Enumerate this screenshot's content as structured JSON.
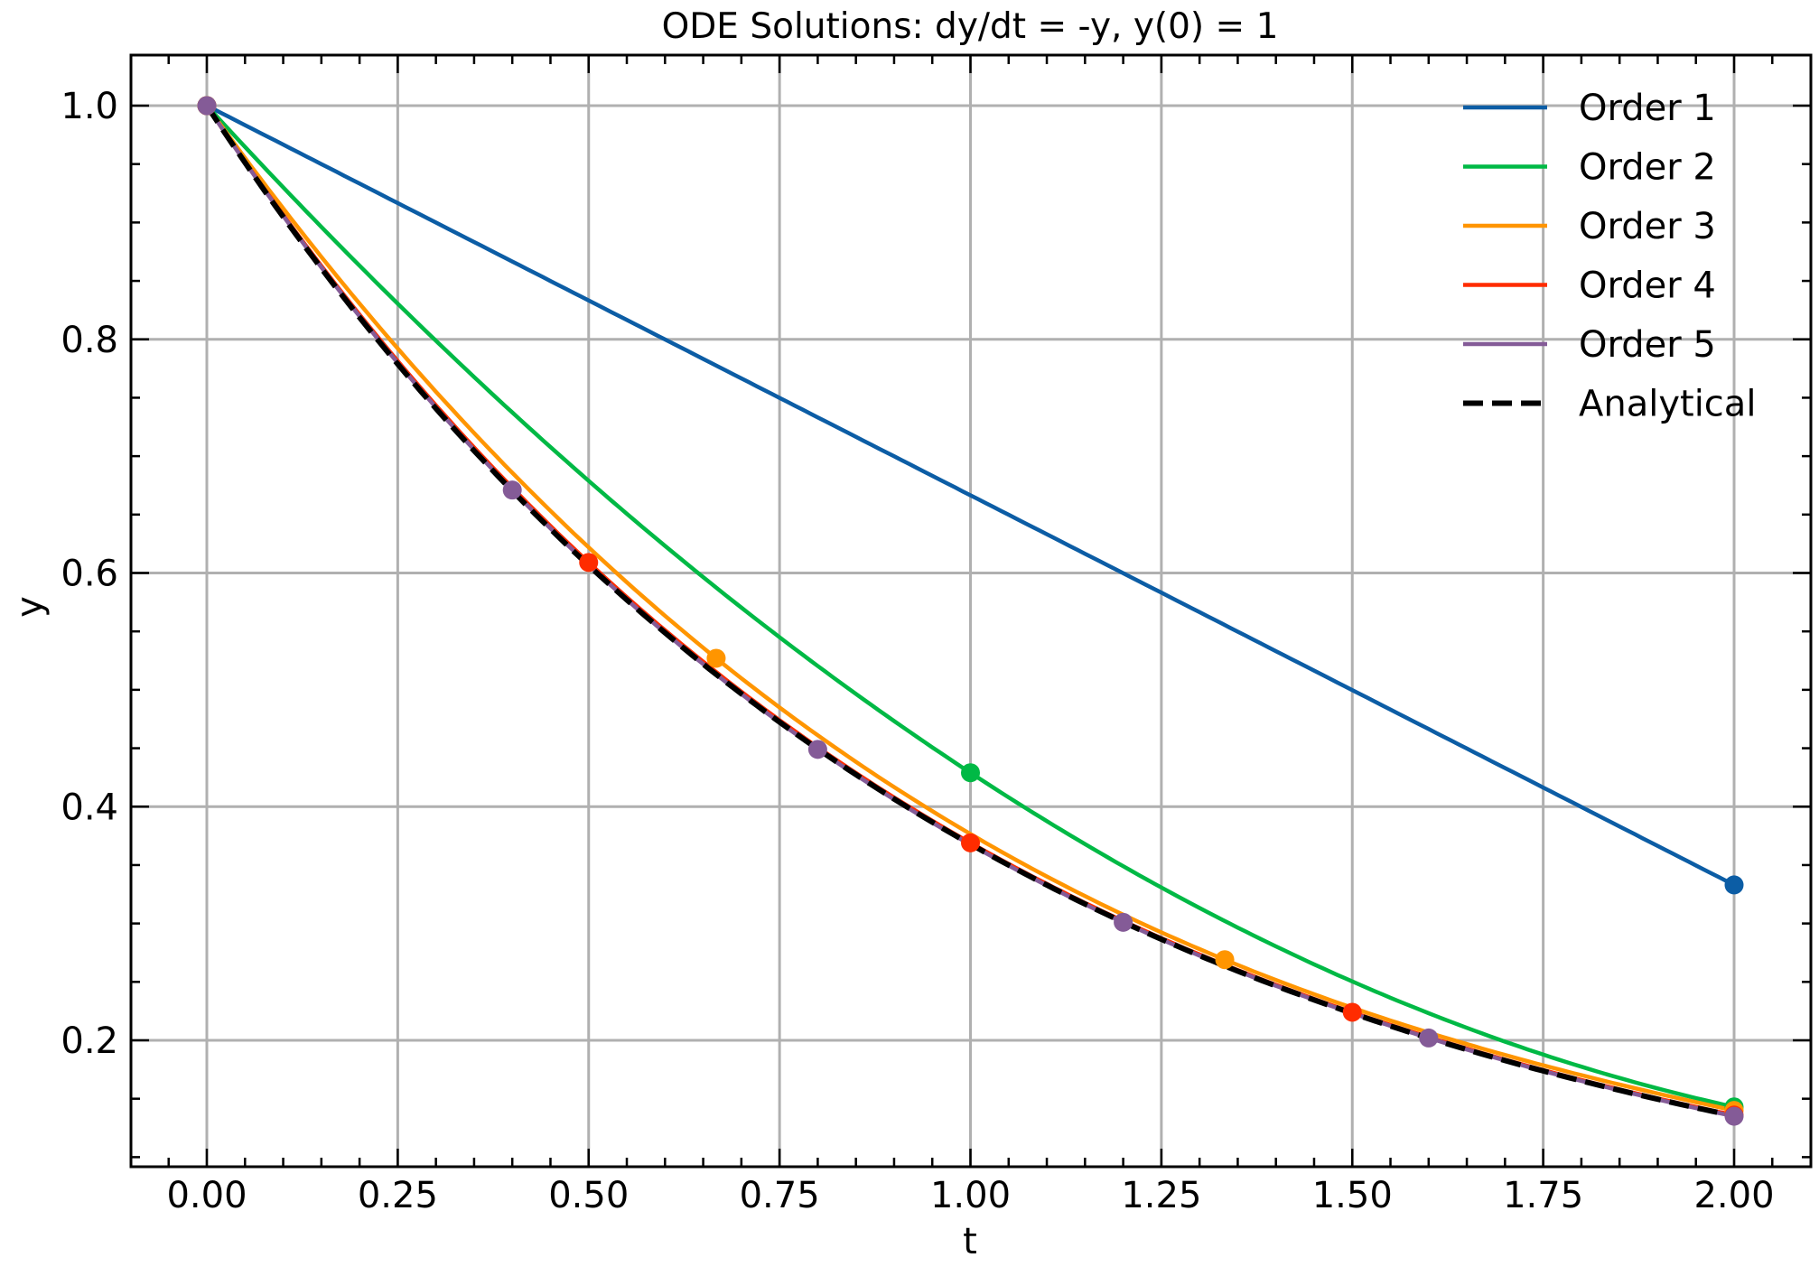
{
  "chart_data": {
    "type": "line",
    "title": "ODE Solutions: dy/dt = -y, y(0) = 1",
    "xlabel": "t",
    "ylabel": "y",
    "xlim": [
      -0.1,
      2.1
    ],
    "ylim": [
      0.09,
      1.044
    ],
    "grid": true,
    "legend_position": "upper right",
    "x_ticks": [
      0.0,
      0.25,
      0.5,
      0.75,
      1.0,
      1.25,
      1.5,
      1.75,
      2.0
    ],
    "x_tick_labels": [
      "0.00",
      "0.25",
      "0.50",
      "0.75",
      "1.00",
      "1.25",
      "1.50",
      "1.75",
      "2.00"
    ],
    "y_ticks": [
      0.2,
      0.4,
      0.6,
      0.8,
      1.0
    ],
    "y_tick_labels": [
      "0.2",
      "0.4",
      "0.6",
      "0.8",
      "1.0"
    ],
    "series": [
      {
        "name": "Order 1",
        "color": "#0C5DA5",
        "style": "solid",
        "marker_points": {
          "t": [
            0.0,
            2.0
          ],
          "y": [
            1.0,
            0.333
          ]
        }
      },
      {
        "name": "Order 2",
        "color": "#00B945",
        "style": "solid",
        "marker_points": {
          "t": [
            0.0,
            1.0,
            2.0
          ],
          "y": [
            1.0,
            0.429,
            0.143
          ]
        }
      },
      {
        "name": "Order 3",
        "color": "#FF9500",
        "style": "solid",
        "marker_points": {
          "t": [
            0.0,
            0.667,
            1.333,
            2.0
          ],
          "y": [
            1.0,
            0.527,
            0.269,
            0.14
          ]
        }
      },
      {
        "name": "Order 4",
        "color": "#FF2C00",
        "style": "solid",
        "marker_points": {
          "t": [
            0.0,
            0.5,
            1.0,
            1.5,
            2.0
          ],
          "y": [
            1.0,
            0.609,
            0.369,
            0.224,
            0.136
          ]
        }
      },
      {
        "name": "Order 5",
        "color": "#845B97",
        "style": "solid",
        "marker_points": {
          "t": [
            0.0,
            0.4,
            0.8,
            1.2,
            1.6,
            2.0
          ],
          "y": [
            1.0,
            0.671,
            0.449,
            0.301,
            0.202,
            0.135
          ]
        }
      },
      {
        "name": "Analytical",
        "color": "#000000",
        "style": "dashed",
        "formula": "y = exp(-t)",
        "sample_points": {
          "t": [
            0.0,
            0.25,
            0.5,
            0.75,
            1.0,
            1.25,
            1.5,
            1.75,
            2.0
          ],
          "y": [
            1.0,
            0.779,
            0.607,
            0.472,
            0.368,
            0.287,
            0.223,
            0.174,
            0.135
          ]
        }
      }
    ]
  },
  "legend": {
    "items": [
      "Order 1",
      "Order 2",
      "Order 3",
      "Order 4",
      "Order 5",
      "Analytical"
    ]
  },
  "colors": {
    "grid": "#b0b0b0",
    "axes": "#000000",
    "background": "#ffffff"
  }
}
